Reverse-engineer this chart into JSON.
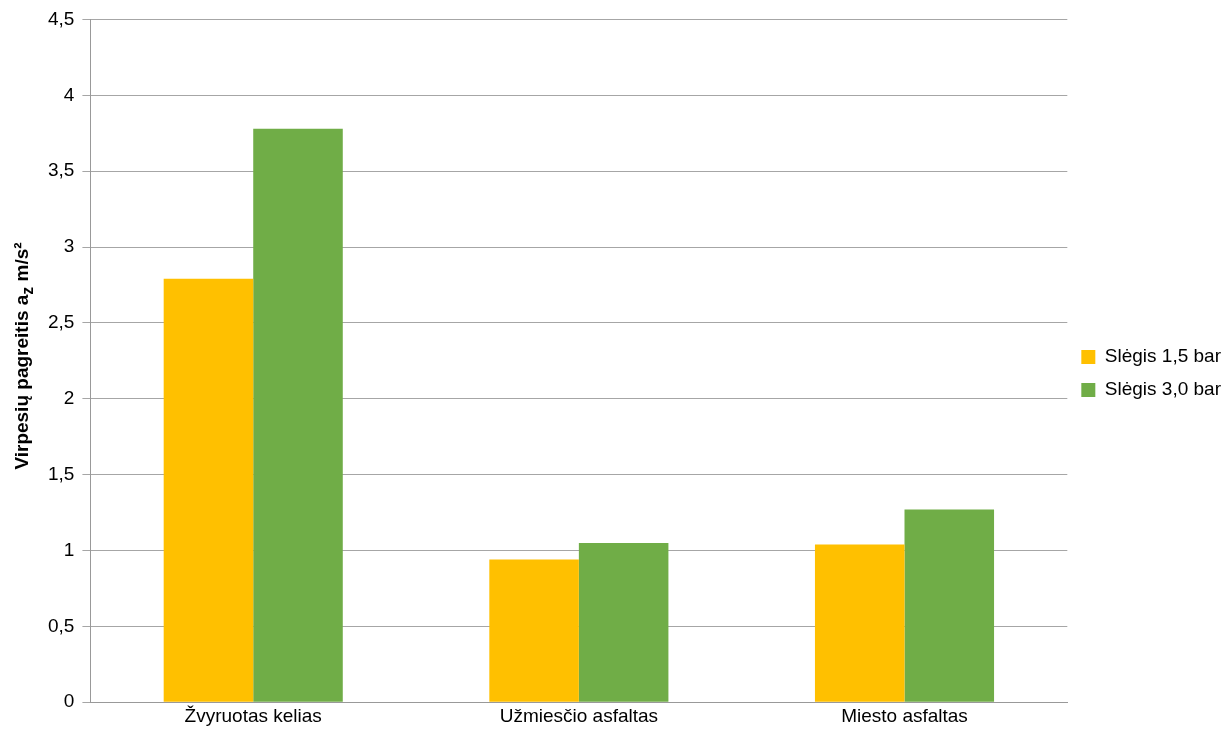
{
  "chart_data": {
    "type": "bar",
    "ylabel": "Virpesių pagreitis a$_{z}$ m/s²",
    "categories": [
      "Žvyruotas kelias",
      "Užmiesčio asfaltas",
      "Miesto asfaltas"
    ],
    "series": [
      {
        "name": "Slėgis 1,5 bar",
        "color": "#ffc000",
        "values": [
          2.79,
          0.94,
          1.04
        ]
      },
      {
        "name": "Slėgis 3,0 bar",
        "color": "#70ad47",
        "values": [
          3.78,
          1.05,
          1.27
        ]
      }
    ],
    "ylim": [
      0,
      4.5
    ],
    "yticks": [
      0,
      {
        "value": 0.5,
        "label": "0,5"
      },
      1,
      {
        "value": 1.5,
        "label": "1,5"
      },
      2,
      {
        "value": 2.5,
        "label": "2,5"
      },
      3,
      {
        "value": 3.5,
        "label": "3,5"
      },
      4,
      {
        "value": 4.5,
        "label": "4,5"
      }
    ],
    "grid": "y",
    "legend": "right"
  }
}
